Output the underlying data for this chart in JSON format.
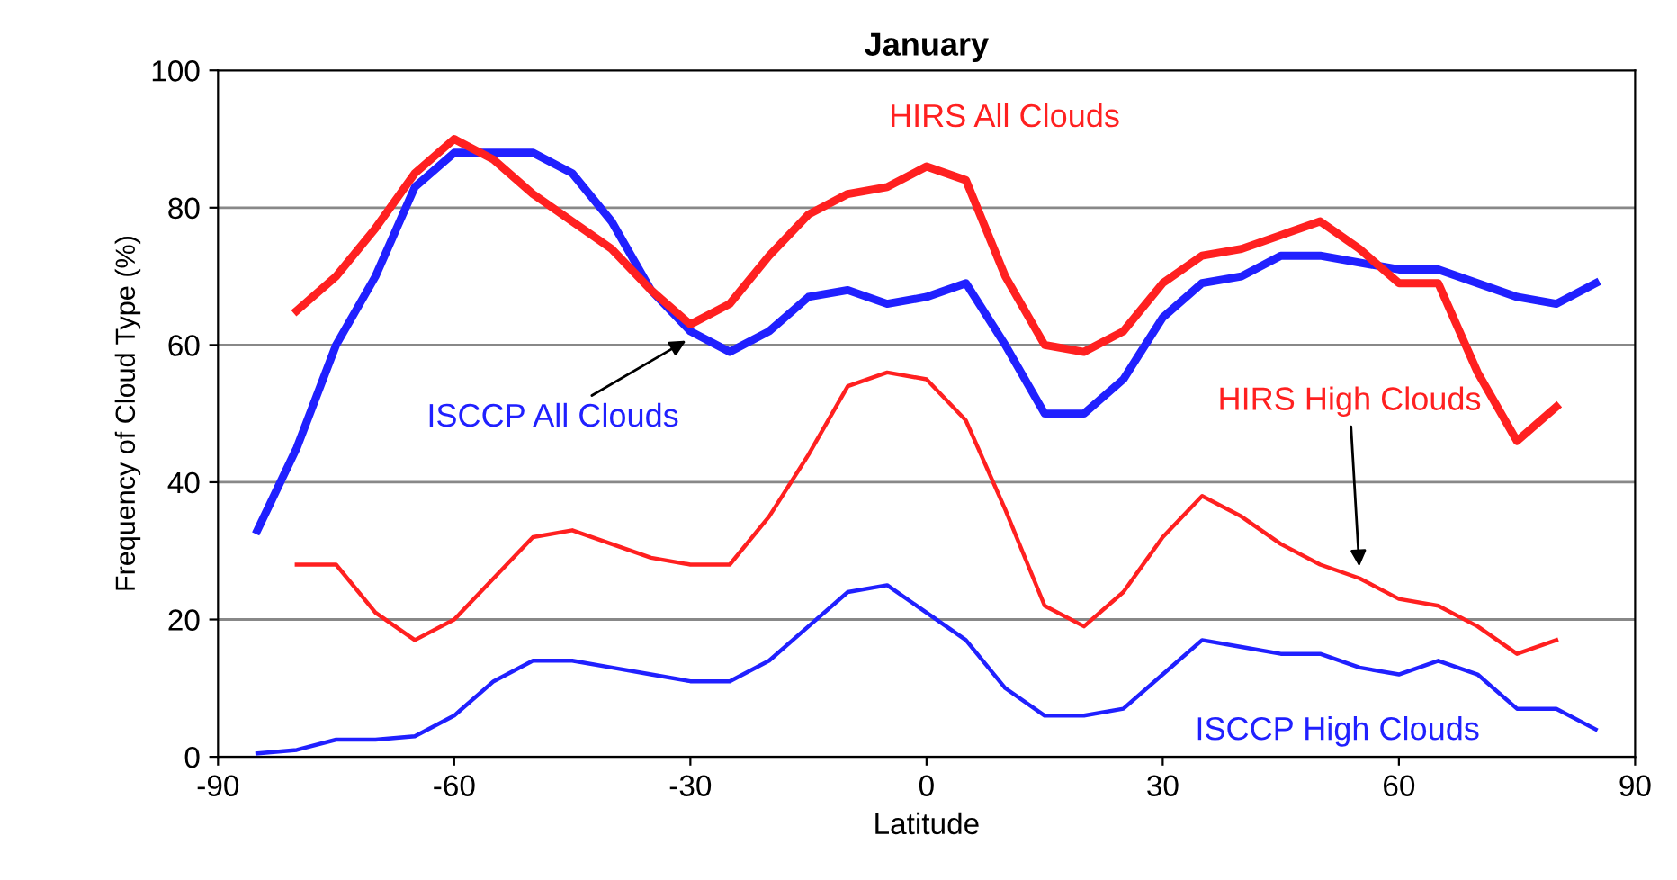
{
  "chart_data": {
    "type": "line",
    "title": "January",
    "xlabel": "Latitude",
    "ylabel": "Frequency of Cloud Type (%)",
    "xlim": [
      -90,
      90
    ],
    "xticks": [
      -90,
      -60,
      -30,
      0,
      30,
      60,
      90
    ],
    "ylim": [
      0,
      100
    ],
    "yticks": [
      0,
      20,
      40,
      60,
      80,
      100
    ],
    "grid": "y",
    "legend": false,
    "marker": "none",
    "series": [
      {
        "color": "#ff2020",
        "x": [
          -80,
          -75,
          -70,
          -65,
          -60,
          -55,
          -50,
          -45,
          -40,
          -35,
          -30,
          -25,
          -20,
          -15,
          -10,
          -5,
          0,
          5,
          10,
          15,
          20,
          25,
          30,
          35,
          40,
          45,
          50,
          55,
          60,
          65,
          70,
          75,
          80
        ],
        "values": [
          28,
          28,
          21,
          17,
          20,
          26,
          32,
          33,
          31,
          29,
          28,
          28,
          35,
          44,
          54,
          56,
          55,
          49,
          36,
          22,
          19,
          24,
          32,
          38,
          35,
          31,
          28,
          26,
          23,
          22,
          19,
          15,
          17
        ]
      },
      {
        "color": "#2020ff",
        "x": [
          -85,
          -80,
          -75,
          -70,
          -65,
          -60,
          -55,
          -50,
          -45,
          -40,
          -35,
          -30,
          -25,
          -20,
          -15,
          -10,
          -5,
          0,
          5,
          10,
          15,
          20,
          25,
          30,
          35,
          40,
          45,
          50,
          55,
          60,
          65,
          70,
          75,
          80,
          85
        ],
        "values": [
          0.5,
          1,
          2.5,
          2.5,
          3,
          6,
          11,
          14,
          14,
          13,
          12,
          11,
          11,
          14,
          19,
          24,
          25,
          21,
          17,
          10,
          6,
          6,
          7,
          12,
          17,
          16,
          15,
          15,
          13,
          12,
          14,
          12,
          7,
          7,
          4
        ]
      },
      {
        "color": "#2020ff",
        "x": [
          -85,
          -80,
          -75,
          -70,
          -65,
          -60,
          -55,
          -50,
          -45,
          -40,
          -35,
          -30,
          -25,
          -20,
          -15,
          -10,
          -5,
          0,
          5,
          10,
          15,
          20,
          25,
          30,
          35,
          40,
          45,
          50,
          55,
          60,
          65,
          70,
          75,
          80,
          85
        ],
        "values": [
          33,
          45,
          60,
          70,
          83,
          88,
          88,
          88,
          85,
          78,
          68,
          62,
          59,
          62,
          67,
          68,
          66,
          67,
          69,
          60,
          50,
          50,
          55,
          64,
          69,
          70,
          73,
          73,
          72,
          71,
          71,
          69,
          67,
          66,
          69
        ]
      },
      {
        "color": "#ff2020",
        "x": [
          -80,
          -75,
          -70,
          -65,
          -60,
          -55,
          -50,
          -45,
          -40,
          -35,
          -30,
          -25,
          -20,
          -15,
          -10,
          -5,
          0,
          5,
          10,
          15,
          20,
          25,
          30,
          35,
          40,
          45,
          50,
          55,
          60,
          65,
          70,
          75,
          80
        ],
        "values": [
          65,
          70,
          77,
          85,
          90,
          87,
          82,
          78,
          74,
          68,
          63,
          66,
          73,
          79,
          82,
          83,
          86,
          84,
          70,
          60,
          59,
          62,
          69,
          73,
          74,
          76,
          78,
          74,
          69,
          69,
          56,
          46,
          51
        ]
      }
    ],
    "annotations": [
      "HIRS All Clouds",
      {
        "text": "ISCCP All Clouds",
        "x": -30,
        "y": 61
      },
      {
        "text": "HIRS High Clouds",
        "x": 55,
        "y": 27
      },
      "ISCCP High Clouds"
    ]
  }
}
